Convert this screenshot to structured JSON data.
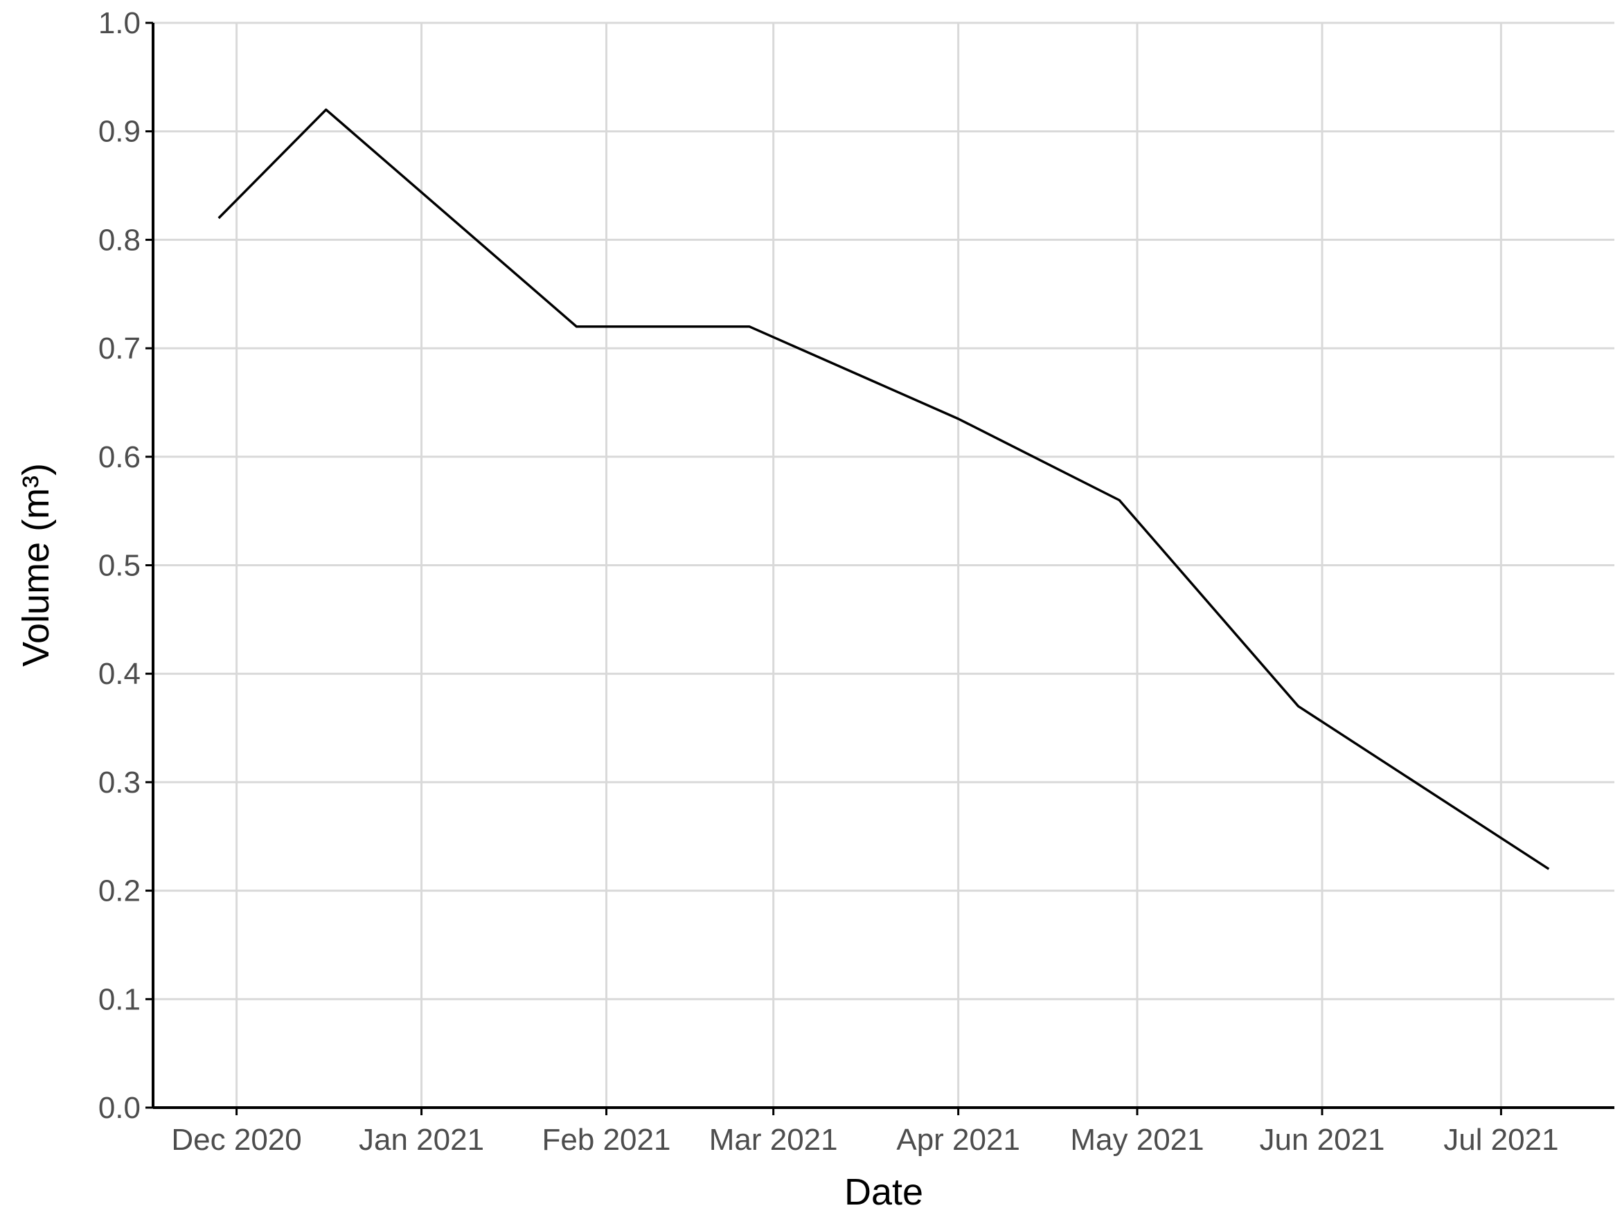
{
  "chart_data": {
    "type": "line",
    "x_label": "Date",
    "y_label": "Volume (m³)",
    "x": [
      "2020-11-28",
      "2020-12-16",
      "2021-01-27",
      "2021-02-25",
      "2021-04-01",
      "2021-04-28",
      "2021-05-28",
      "2021-07-09"
    ],
    "series": [
      {
        "color": "#000000",
        "values": [
          0.82,
          0.92,
          0.72,
          0.72,
          0.635,
          0.56,
          0.37,
          0.22
        ]
      }
    ],
    "xlim": [
      "2020-11-17",
      "2021-07-20"
    ],
    "xticks": [
      {
        "value": "2020-12",
        "label": "Dec 2020"
      },
      {
        "value": "2021-01",
        "label": "Jan 2021"
      },
      {
        "value": "2021-02",
        "label": "Feb 2021"
      },
      {
        "value": "2021-03",
        "label": "Mar 2021"
      },
      {
        "value": "2021-04",
        "label": "Apr 2021"
      },
      {
        "value": "2021-05",
        "label": "May 2021"
      },
      {
        "value": "2021-06",
        "label": "Jun 2021"
      },
      {
        "value": "2021-07",
        "label": "Jul 2021"
      }
    ],
    "ylim": [
      0,
      1
    ],
    "yticks": [
      {
        "value": 0,
        "label": "0.0"
      },
      0.1,
      0.2,
      0.3,
      0.4,
      0.5,
      0.6,
      0.7,
      0.8,
      0.9,
      {
        "value": 1,
        "label": "1.0"
      }
    ],
    "grid": true
  }
}
